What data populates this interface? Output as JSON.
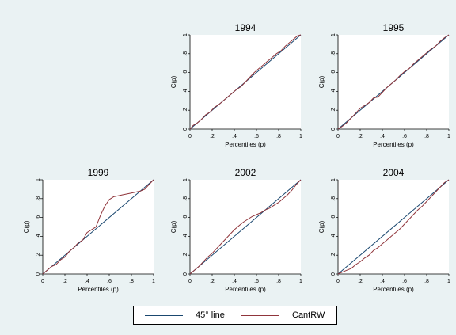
{
  "colors": {
    "background": "#eaf2f3",
    "plot_bg": "#ffffff",
    "line45": "#1a476f",
    "cantrw": "#90353b",
    "text": "#000000"
  },
  "legend": {
    "items": [
      {
        "label": "45° line",
        "color": "#1a476f"
      },
      {
        "label": "CantRW",
        "color": "#90353b"
      }
    ]
  },
  "chart_data": [
    {
      "type": "line",
      "title": "1994",
      "xlabel": "Percentiles (p)",
      "ylabel": "C(p)",
      "xlim": [
        0,
        1
      ],
      "ylim": [
        0,
        1
      ],
      "xticks": [
        "0",
        ".2",
        ".4",
        ".6",
        ".8",
        "1"
      ],
      "yticks": [
        "0",
        ".2",
        ".4",
        ".6",
        ".8",
        "1"
      ],
      "series": [
        {
          "name": "45° line",
          "x": [
            0,
            1
          ],
          "y": [
            0,
            1
          ]
        },
        {
          "name": "CantRW",
          "x": [
            0,
            0.03,
            0.06,
            0.1,
            0.14,
            0.18,
            0.22,
            0.26,
            0.3,
            0.34,
            0.38,
            0.42,
            0.46,
            0.5,
            0.54,
            0.58,
            0.62,
            0.66,
            0.7,
            0.74,
            0.78,
            0.82,
            0.86,
            0.9,
            0.94,
            0.97,
            1
          ],
          "y": [
            0,
            0.04,
            0.06,
            0.1,
            0.15,
            0.18,
            0.23,
            0.26,
            0.3,
            0.34,
            0.38,
            0.42,
            0.45,
            0.5,
            0.55,
            0.6,
            0.64,
            0.68,
            0.72,
            0.76,
            0.8,
            0.83,
            0.88,
            0.92,
            0.96,
            0.99,
            1
          ]
        }
      ]
    },
    {
      "type": "line",
      "title": "1995",
      "xlabel": "Percentiles (p)",
      "ylabel": "C(p)",
      "xlim": [
        0,
        1
      ],
      "ylim": [
        0,
        1
      ],
      "xticks": [
        "0",
        ".2",
        ".4",
        ".6",
        ".8",
        "1"
      ],
      "yticks": [
        "0",
        ".2",
        ".4",
        ".6",
        ".8",
        "1"
      ],
      "series": [
        {
          "name": "45° line",
          "x": [
            0,
            1
          ],
          "y": [
            0,
            1
          ]
        },
        {
          "name": "CantRW",
          "x": [
            0,
            0.04,
            0.08,
            0.12,
            0.16,
            0.2,
            0.24,
            0.28,
            0.32,
            0.36,
            0.4,
            0.44,
            0.48,
            0.52,
            0.56,
            0.6,
            0.64,
            0.68,
            0.72,
            0.76,
            0.8,
            0.84,
            0.88,
            0.92,
            0.96,
            1
          ],
          "y": [
            0,
            0.03,
            0.07,
            0.12,
            0.17,
            0.22,
            0.25,
            0.28,
            0.33,
            0.34,
            0.39,
            0.44,
            0.48,
            0.52,
            0.57,
            0.61,
            0.64,
            0.69,
            0.73,
            0.77,
            0.81,
            0.85,
            0.88,
            0.93,
            0.97,
            1
          ]
        }
      ]
    },
    {
      "type": "line",
      "title": "1999",
      "xlabel": "Percentiles (p)",
      "ylabel": "C(p)",
      "xlim": [
        0,
        1
      ],
      "ylim": [
        0,
        1
      ],
      "xticks": [
        "0",
        ".2",
        ".4",
        ".6",
        ".8",
        "1"
      ],
      "yticks": [
        "0",
        ".2",
        ".4",
        ".6",
        ".8",
        "1"
      ],
      "series": [
        {
          "name": "45° line",
          "x": [
            0,
            1
          ],
          "y": [
            0,
            1
          ]
        },
        {
          "name": "CantRW",
          "x": [
            0,
            0.04,
            0.08,
            0.12,
            0.16,
            0.2,
            0.24,
            0.28,
            0.32,
            0.36,
            0.4,
            0.44,
            0.48,
            0.52,
            0.56,
            0.6,
            0.64,
            0.68,
            0.72,
            0.76,
            0.8,
            0.84,
            0.88,
            0.92,
            0.96,
            1
          ],
          "y": [
            0,
            0.04,
            0.08,
            0.1,
            0.15,
            0.18,
            0.24,
            0.28,
            0.33,
            0.36,
            0.44,
            0.47,
            0.5,
            0.62,
            0.72,
            0.79,
            0.82,
            0.83,
            0.84,
            0.85,
            0.86,
            0.87,
            0.88,
            0.9,
            0.95,
            1
          ]
        }
      ]
    },
    {
      "type": "line",
      "title": "2002",
      "xlabel": "Percentiles (p)",
      "ylabel": "C(p)",
      "xlim": [
        0,
        1
      ],
      "ylim": [
        0,
        1
      ],
      "xticks": [
        "0",
        ".2",
        ".4",
        ".6",
        ".8",
        "1"
      ],
      "yticks": [
        "0",
        ".2",
        ".4",
        ".6",
        ".8",
        "1"
      ],
      "series": [
        {
          "name": "45° line",
          "x": [
            0,
            1
          ],
          "y": [
            0,
            1
          ]
        },
        {
          "name": "CantRW",
          "x": [
            0,
            0.04,
            0.08,
            0.12,
            0.16,
            0.2,
            0.24,
            0.28,
            0.32,
            0.36,
            0.4,
            0.44,
            0.48,
            0.52,
            0.56,
            0.6,
            0.64,
            0.68,
            0.72,
            0.76,
            0.8,
            0.84,
            0.88,
            0.92,
            0.96,
            1
          ],
          "y": [
            0,
            0.04,
            0.08,
            0.13,
            0.18,
            0.22,
            0.27,
            0.32,
            0.37,
            0.42,
            0.47,
            0.51,
            0.55,
            0.58,
            0.61,
            0.63,
            0.65,
            0.68,
            0.7,
            0.73,
            0.76,
            0.8,
            0.84,
            0.89,
            0.95,
            1
          ]
        }
      ]
    },
    {
      "type": "line",
      "title": "2004",
      "xlabel": "Percentiles (p)",
      "ylabel": "C(p)",
      "xlim": [
        0,
        1
      ],
      "ylim": [
        0,
        1
      ],
      "xticks": [
        "0",
        ".2",
        ".4",
        ".6",
        ".8",
        "1"
      ],
      "yticks": [
        "0",
        ".2",
        ".4",
        ".6",
        ".8",
        "1"
      ],
      "series": [
        {
          "name": "45° line",
          "x": [
            0,
            1
          ],
          "y": [
            0,
            1
          ]
        },
        {
          "name": "CantRW",
          "x": [
            0,
            0.04,
            0.08,
            0.12,
            0.16,
            0.2,
            0.24,
            0.28,
            0.32,
            0.36,
            0.4,
            0.44,
            0.48,
            0.52,
            0.56,
            0.6,
            0.64,
            0.68,
            0.72,
            0.76,
            0.8,
            0.84,
            0.88,
            0.92,
            0.96,
            1
          ],
          "y": [
            0,
            0.02,
            0.04,
            0.06,
            0.1,
            0.13,
            0.17,
            0.2,
            0.25,
            0.28,
            0.32,
            0.36,
            0.4,
            0.44,
            0.48,
            0.53,
            0.58,
            0.63,
            0.68,
            0.72,
            0.77,
            0.82,
            0.87,
            0.92,
            0.97,
            1
          ]
        }
      ]
    }
  ]
}
